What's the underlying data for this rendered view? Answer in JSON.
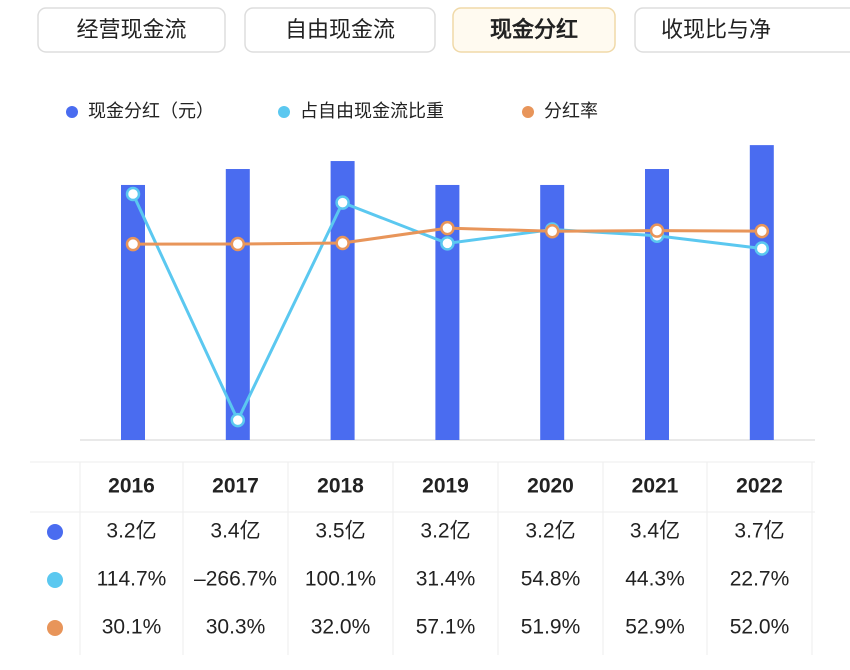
{
  "tabs": [
    "经营现金流",
    "自由现金流",
    "现金分红",
    "收现比与净"
  ],
  "active_tab": 2,
  "chart_data": {
    "type": "bar",
    "categories": [
      "2016",
      "2017",
      "2018",
      "2019",
      "2020",
      "2021",
      "2022"
    ],
    "series": [
      {
        "name": "现金分红（元）",
        "type": "bar",
        "color": "#4a6cf0",
        "values": [
          3.2,
          3.4,
          3.5,
          3.2,
          3.2,
          3.4,
          3.7
        ],
        "value_labels": [
          "3.2亿",
          "3.4亿",
          "3.5亿",
          "3.2亿",
          "3.2亿",
          "3.4亿",
          "3.7亿"
        ]
      },
      {
        "name": "占自由现金流比重",
        "type": "line",
        "color": "#5bc8f0",
        "values": [
          114.7,
          -266.7,
          100.1,
          31.4,
          54.8,
          44.3,
          22.7
        ],
        "value_labels": [
          "114.7%",
          "–266.7%",
          "100.1%",
          "31.4%",
          "54.8%",
          "44.3%",
          "22.7%"
        ]
      },
      {
        "name": "分红率",
        "type": "line",
        "color": "#e8955a",
        "values": [
          30.1,
          30.3,
          32.0,
          57.1,
          51.9,
          52.9,
          52.0
        ],
        "value_labels": [
          "30.1%",
          "30.3%",
          "32.0%",
          "57.1%",
          "51.9%",
          "52.9%",
          "52.0%"
        ]
      }
    ]
  }
}
